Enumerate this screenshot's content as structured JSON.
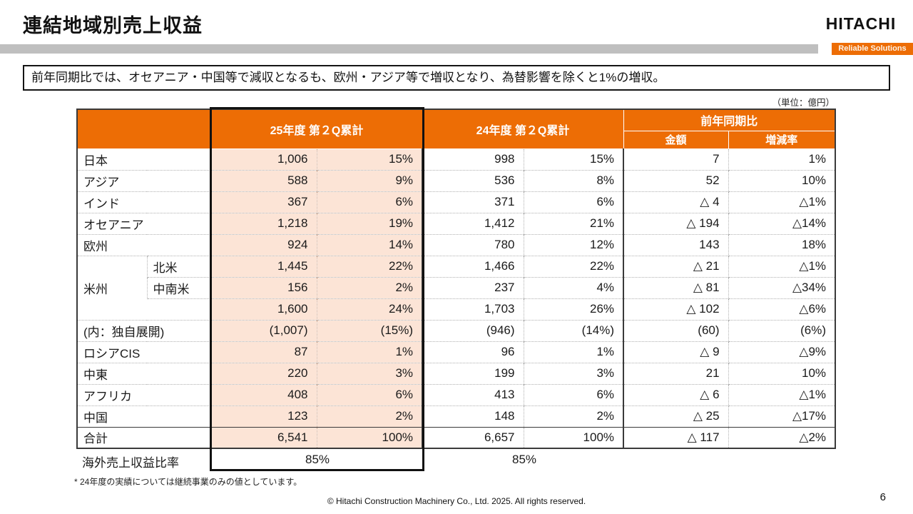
{
  "slide": {
    "title": "連結地域別売上収益",
    "message": "前年同期比では、オセアニア・中国等で減収となるも、欧州・アジア等で増収となり、為替影響を除くと1%の増収。",
    "unit_label": "（単位：億円）",
    "footnote": "* 24年度の実績については継続事業のみの値としています。",
    "footer": "© Hitachi Construction Machinery Co., Ltd. 2025. All rights reserved.",
    "page_number": "6"
  },
  "logo": {
    "brand": "HITACHI",
    "tagline": "Reliable Solutions"
  },
  "colors": {
    "accent_orange": "#ED6D05",
    "highlight_cell_bg": "#FCE4D6",
    "gray_bar": "#BFBFBF",
    "highlight_border": "#111111"
  },
  "table": {
    "headers": {
      "fy25": "25年度 第２Q累計",
      "fy24": "24年度 第２Q累計",
      "yoy": "前年同期比",
      "yoy_amount": "金額",
      "yoy_rate": "増減率"
    },
    "rows": [
      {
        "type": "plain",
        "label": "日本",
        "values": [
          "1,006",
          "15%",
          "998",
          "15%",
          "7",
          "1%"
        ]
      },
      {
        "type": "plain",
        "label": "アジア",
        "values": [
          "588",
          "9%",
          "536",
          "8%",
          "52",
          "10%"
        ]
      },
      {
        "type": "plain",
        "label": "インド",
        "values": [
          "367",
          "6%",
          "371",
          "6%",
          "△ 4",
          "△1%"
        ]
      },
      {
        "type": "plain",
        "label": "オセアニア",
        "values": [
          "1,218",
          "19%",
          "1,412",
          "21%",
          "△ 194",
          "△14%"
        ]
      },
      {
        "type": "plain",
        "label": "欧州",
        "values": [
          "924",
          "14%",
          "780",
          "12%",
          "143",
          "18%"
        ]
      },
      {
        "type": "group-first",
        "label": "米州",
        "sublabel": "北米",
        "values": [
          "1,445",
          "22%",
          "1,466",
          "22%",
          "△ 21",
          "△1%"
        ]
      },
      {
        "type": "group-mid",
        "sublabel": "中南米",
        "values": [
          "156",
          "2%",
          "237",
          "4%",
          "△ 81",
          "△34%"
        ]
      },
      {
        "type": "group-last",
        "sublabel": "",
        "values": [
          "1,600",
          "24%",
          "1,703",
          "26%",
          "△ 102",
          "△6%"
        ]
      },
      {
        "type": "plain",
        "label": "(内：独自展開)",
        "values": [
          "(1,007)",
          "(15%)",
          "(946)",
          "(14%)",
          "(60)",
          "(6%)"
        ]
      },
      {
        "type": "plain",
        "label": "ロシアCIS",
        "values": [
          "87",
          "1%",
          "96",
          "1%",
          "△ 9",
          "△9%"
        ]
      },
      {
        "type": "plain",
        "label": "中東",
        "values": [
          "220",
          "3%",
          "199",
          "3%",
          "21",
          "10%"
        ]
      },
      {
        "type": "plain",
        "label": "アフリカ",
        "values": [
          "408",
          "6%",
          "413",
          "6%",
          "△ 6",
          "△1%"
        ]
      },
      {
        "type": "plain",
        "label": "中国",
        "values": [
          "123",
          "2%",
          "148",
          "2%",
          "△ 25",
          "△17%"
        ]
      },
      {
        "type": "total",
        "label": "合計",
        "values": [
          "6,541",
          "100%",
          "6,657",
          "100%",
          "△ 117",
          "△2%"
        ]
      }
    ],
    "overseas_row": {
      "label": "海外売上収益比率",
      "fy25": "85%",
      "fy24": "85%"
    }
  }
}
